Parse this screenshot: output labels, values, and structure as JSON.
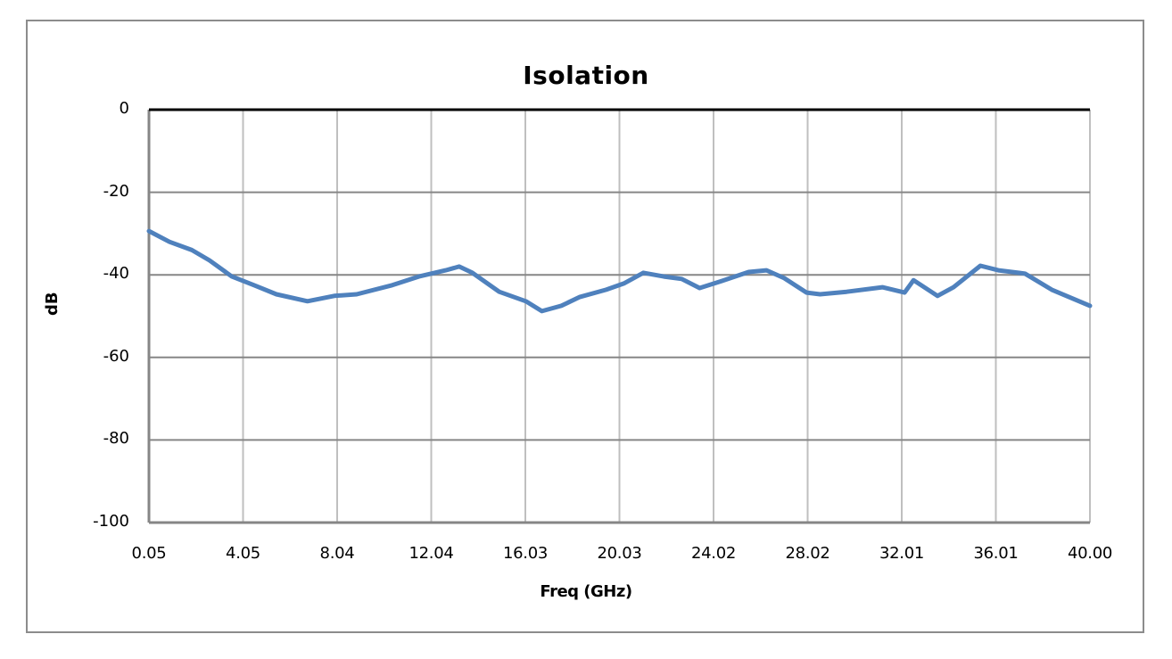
{
  "chart_data": {
    "type": "line",
    "title": "Isolation",
    "xlabel": "Freq (GHz)",
    "ylabel": "dB",
    "ylim": [
      -100,
      0
    ],
    "xlim": [
      0.05,
      40.0
    ],
    "grid": true,
    "legend": null,
    "x_tick_labels": [
      "0.05",
      "4.05",
      "8.04",
      "12.04",
      "16.03",
      "20.03",
      "24.02",
      "28.02",
      "32.01",
      "36.01",
      "40.00"
    ],
    "y_tick_labels": [
      "0",
      "-20",
      "-40",
      "-60",
      "-80",
      "-100"
    ],
    "y_tick_values": [
      0,
      -20,
      -40,
      -60,
      -80,
      -100
    ],
    "series": [
      {
        "name": "Isolation",
        "color": "#4f81bd",
        "x": [
          0.05,
          0.92,
          1.87,
          2.62,
          3.57,
          4.51,
          5.46,
          6.78,
          7.92,
          8.87,
          10.38,
          11.51,
          12.65,
          13.22,
          13.78,
          14.92,
          16.05,
          16.73,
          17.56,
          18.32,
          19.46,
          20.21,
          21.04,
          21.91,
          22.67,
          23.43,
          24.37,
          25.51,
          26.27,
          27.02,
          27.97,
          28.54,
          29.67,
          31.19,
          32.13,
          32.51,
          33.53,
          34.21,
          35.35,
          36.11,
          37.24,
          38.38,
          40.0
        ],
        "y": [
          -29.4,
          -32.0,
          -34.0,
          -36.5,
          -40.4,
          -42.5,
          -44.7,
          -46.4,
          -45.1,
          -44.7,
          -42.5,
          -40.4,
          -38.9,
          -38.0,
          -39.5,
          -44.1,
          -46.4,
          -48.8,
          -47.5,
          -45.4,
          -43.6,
          -42.1,
          -39.5,
          -40.4,
          -41.0,
          -43.2,
          -41.5,
          -39.3,
          -38.9,
          -40.8,
          -44.3,
          -44.7,
          -44.1,
          -43.0,
          -44.3,
          -41.3,
          -45.1,
          -43.0,
          -37.8,
          -38.9,
          -39.7,
          -43.6,
          -47.5
        ]
      }
    ]
  },
  "colors": {
    "line": "#4f81bd",
    "grid_major": "#bfbfbf",
    "grid_h": "#868686",
    "axis": "#868686",
    "frame": "#8c8c8c",
    "zero_line": "#000000"
  }
}
